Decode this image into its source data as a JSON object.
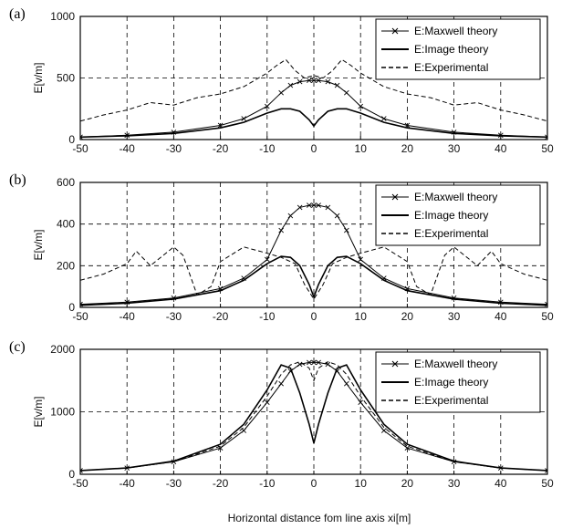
{
  "xlabel": "Horizontal distance fom line axis xi[m]",
  "chart_data": [
    {
      "type": "line",
      "panel_label": "(a)",
      "ylabel": "E[v/m]",
      "xlim": [
        -50,
        50
      ],
      "ylim": [
        0,
        1000
      ],
      "xticks": [
        -50,
        -40,
        -30,
        -20,
        -10,
        0,
        10,
        20,
        30,
        40,
        50
      ],
      "yticks": [
        0,
        500,
        1000
      ],
      "grid": true,
      "legend_position": "top-right",
      "series": [
        {
          "name": "E:Maxwell theory",
          "style": "solid-x",
          "x": [
            -50,
            -40,
            -30,
            -20,
            -15,
            -10,
            -7,
            -5,
            -3,
            -1,
            0,
            1,
            3,
            5,
            7,
            10,
            15,
            20,
            30,
            40,
            50
          ],
          "y": [
            20,
            35,
            60,
            115,
            170,
            270,
            380,
            440,
            470,
            480,
            480,
            480,
            470,
            440,
            380,
            270,
            170,
            115,
            60,
            35,
            20
          ]
        },
        {
          "name": "E:Image theory",
          "style": "solid-thick",
          "x": [
            -50,
            -40,
            -30,
            -20,
            -15,
            -10,
            -7,
            -5,
            -3,
            -1,
            0,
            1,
            3,
            5,
            7,
            10,
            15,
            20,
            30,
            40,
            50
          ],
          "y": [
            20,
            30,
            50,
            95,
            140,
            215,
            250,
            250,
            230,
            160,
            110,
            160,
            230,
            250,
            250,
            215,
            140,
            95,
            50,
            30,
            20
          ]
        },
        {
          "name": "E:Experimental",
          "style": "dashed",
          "x": [
            -50,
            -45,
            -40,
            -35,
            -30,
            -25,
            -20,
            -15,
            -10,
            -8,
            -6,
            -4,
            -2,
            0,
            2,
            4,
            6,
            8,
            10,
            15,
            20,
            25,
            30,
            35,
            40,
            45,
            50
          ],
          "y": [
            150,
            200,
            240,
            300,
            280,
            340,
            370,
            430,
            540,
            600,
            650,
            560,
            500,
            520,
            500,
            560,
            650,
            600,
            540,
            430,
            370,
            340,
            280,
            300,
            240,
            200,
            150
          ]
        }
      ]
    },
    {
      "type": "line",
      "panel_label": "(b)",
      "ylabel": "E[v/m]",
      "xlim": [
        -50,
        50
      ],
      "ylim": [
        0,
        600
      ],
      "xticks": [
        -50,
        -40,
        -30,
        -20,
        -10,
        0,
        10,
        20,
        30,
        40,
        50
      ],
      "yticks": [
        0,
        200,
        400,
        600
      ],
      "grid": true,
      "legend_position": "top-right",
      "series": [
        {
          "name": "E:Maxwell theory",
          "style": "solid-x",
          "x": [
            -50,
            -40,
            -30,
            -20,
            -15,
            -10,
            -7,
            -5,
            -3,
            -1,
            0,
            1,
            3,
            5,
            7,
            10,
            15,
            20,
            30,
            40,
            50
          ],
          "y": [
            15,
            25,
            45,
            90,
            140,
            230,
            370,
            440,
            480,
            490,
            490,
            490,
            480,
            440,
            370,
            230,
            140,
            90,
            45,
            25,
            15
          ]
        },
        {
          "name": "E:Image theory",
          "style": "solid-thick",
          "x": [
            -50,
            -40,
            -30,
            -20,
            -15,
            -10,
            -7,
            -5,
            -3,
            -1,
            0,
            1,
            3,
            5,
            7,
            10,
            15,
            20,
            30,
            40,
            50
          ],
          "y": [
            10,
            20,
            40,
            80,
            130,
            210,
            245,
            240,
            200,
            110,
            50,
            110,
            200,
            240,
            245,
            210,
            130,
            80,
            40,
            20,
            10
          ]
        },
        {
          "name": "E:Experimental",
          "style": "dashed",
          "x": [
            -50,
            -45,
            -40,
            -38,
            -35,
            -30,
            -28,
            -25,
            -22,
            -20,
            -15,
            -10,
            -7,
            -4,
            -2,
            0,
            2,
            4,
            7,
            10,
            15,
            20,
            22,
            25,
            28,
            30,
            35,
            38,
            40,
            45,
            50
          ],
          "y": [
            130,
            160,
            210,
            270,
            200,
            290,
            250,
            60,
            100,
            220,
            290,
            260,
            240,
            210,
            110,
            40,
            110,
            210,
            240,
            260,
            290,
            220,
            100,
            60,
            250,
            290,
            200,
            270,
            210,
            160,
            130
          ]
        }
      ]
    },
    {
      "type": "line",
      "panel_label": "(c)",
      "ylabel": "E[v/m]",
      "xlim": [
        -50,
        50
      ],
      "ylim": [
        0,
        2000
      ],
      "xticks": [
        -50,
        -40,
        -30,
        -20,
        -10,
        0,
        10,
        20,
        30,
        40,
        50
      ],
      "yticks": [
        0,
        1000,
        2000
      ],
      "grid": true,
      "legend_position": "top-right",
      "series": [
        {
          "name": "E:Maxwell theory",
          "style": "solid-x",
          "x": [
            -50,
            -40,
            -30,
            -20,
            -15,
            -10,
            -7,
            -5,
            -3,
            -1,
            0,
            1,
            3,
            5,
            7,
            10,
            15,
            20,
            30,
            40,
            50
          ],
          "y": [
            60,
            100,
            200,
            420,
            700,
            1150,
            1450,
            1650,
            1760,
            1790,
            1790,
            1790,
            1760,
            1650,
            1450,
            1150,
            700,
            420,
            200,
            100,
            60
          ]
        },
        {
          "name": "E:Image theory",
          "style": "solid-thick",
          "x": [
            -50,
            -40,
            -30,
            -20,
            -15,
            -10,
            -7,
            -5,
            -3,
            -1,
            0,
            1,
            3,
            5,
            7,
            10,
            15,
            20,
            30,
            40,
            50
          ],
          "y": [
            60,
            100,
            210,
            480,
            800,
            1350,
            1750,
            1700,
            1300,
            800,
            500,
            800,
            1300,
            1700,
            1750,
            1350,
            800,
            480,
            210,
            100,
            60
          ]
        },
        {
          "name": "E:Experimental",
          "style": "dashed",
          "x": [
            -50,
            -40,
            -30,
            -20,
            -15,
            -10,
            -7,
            -5,
            -3,
            -1,
            0,
            1,
            3,
            5,
            7,
            10,
            15,
            20,
            30,
            40,
            50
          ],
          "y": [
            60,
            100,
            200,
            450,
            750,
            1250,
            1600,
            1750,
            1800,
            1700,
            1500,
            1700,
            1800,
            1750,
            1600,
            1250,
            750,
            450,
            200,
            100,
            60
          ]
        }
      ]
    }
  ]
}
